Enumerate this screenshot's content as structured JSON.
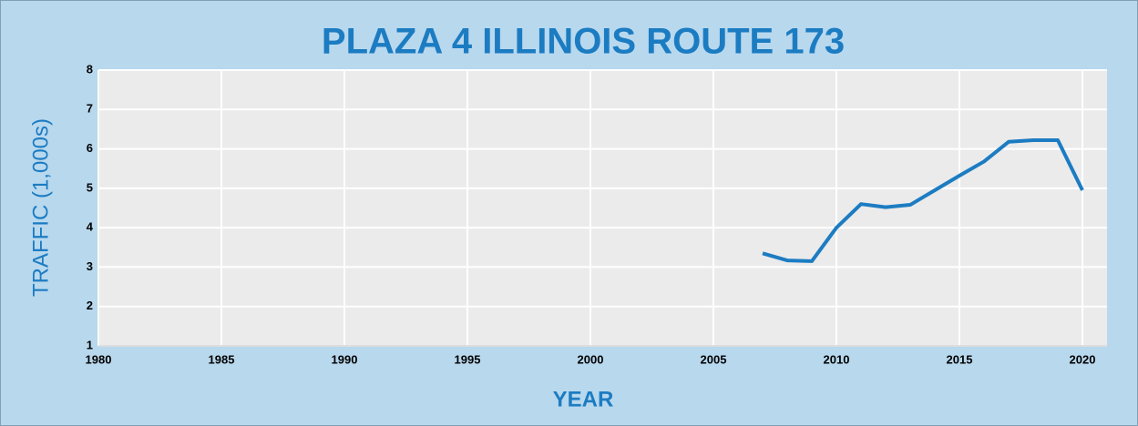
{
  "chart_data": {
    "type": "line",
    "title": "PLAZA 4 ILLINOIS ROUTE 173",
    "xlabel": "YEAR",
    "ylabel": "TRAFFIC (1,000s)",
    "x": [
      2007,
      2008,
      2009,
      2010,
      2011,
      2012,
      2013,
      2014,
      2015,
      2016,
      2017,
      2018,
      2019,
      2020
    ],
    "series": [
      {
        "name": "Traffic",
        "color": "#1c7cc2",
        "values": [
          3.35,
          3.17,
          3.15,
          4.0,
          4.6,
          4.52,
          4.58,
          4.95,
          5.32,
          5.68,
          6.18,
          6.22,
          6.22,
          4.95
        ]
      }
    ],
    "xlim": [
      1980,
      2021
    ],
    "xticks": [
      1980,
      1985,
      1990,
      1995,
      2000,
      2005,
      2010,
      2015,
      2020
    ],
    "ylim": [
      1,
      8
    ],
    "yticks": [
      1,
      2,
      3,
      4,
      5,
      6,
      7,
      8
    ],
    "grid": true
  }
}
